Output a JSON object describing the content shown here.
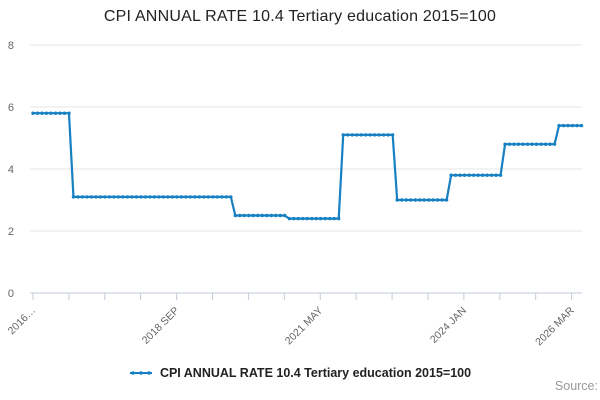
{
  "title": "CPI ANNUAL RATE 10.4 Tertiary education 2015=100",
  "legend": {
    "label": "CPI ANNUAL RATE 10.4 Tertiary education 2015=100"
  },
  "source_label": "Source:",
  "colors": {
    "line": "#1680c2",
    "grid": "#e6e6e6",
    "axis": "#c0cbdc",
    "tick_label": "#666666",
    "title_text": "#222222",
    "source_text": "#999999"
  },
  "chart_data": {
    "type": "line",
    "title": "CPI ANNUAL RATE 10.4 Tertiary education 2015=100",
    "frequency": "monthly",
    "x_start": "2016 JAN",
    "x_end": "2026 MAR",
    "n_points": 123,
    "ylim": [
      0,
      8
    ],
    "yticks": [
      0,
      2,
      4,
      6,
      8
    ],
    "grid": "horizontal-only",
    "legend_position": "bottom-center",
    "marker_style": "line-with-dots",
    "segments": [
      {
        "value": 5.8,
        "from": "2016 JAN",
        "to": "2016 SEP",
        "months": 9
      },
      {
        "value": 3.1,
        "from": "2016 OCT",
        "to": "2019 SEP",
        "months": 36
      },
      {
        "value": 2.5,
        "from": "2019 OCT",
        "to": "2020 SEP",
        "months": 12
      },
      {
        "value": 2.4,
        "from": "2020 OCT",
        "to": "2021 SEP",
        "months": 12
      },
      {
        "value": 5.1,
        "from": "2021 OCT",
        "to": "2022 SEP",
        "months": 12
      },
      {
        "value": 3.0,
        "from": "2022 OCT",
        "to": "2023 SEP",
        "months": 12
      },
      {
        "value": 3.8,
        "from": "2023 OCT",
        "to": "2024 SEP",
        "months": 12
      },
      {
        "value": 4.8,
        "from": "2024 OCT",
        "to": "2025 SEP",
        "months": 12
      },
      {
        "value": 5.4,
        "from": "2025 OCT",
        "to": "2026 MAR",
        "months": 6
      }
    ],
    "x_axis": {
      "tick_count": 16,
      "labeled_ticks": [
        {
          "i": 0,
          "label": "2016…"
        },
        {
          "i": 4,
          "label": "2018 SEP"
        },
        {
          "i": 8,
          "label": "2021 MAY"
        },
        {
          "i": 12,
          "label": "2024 JAN"
        },
        {
          "i": 15,
          "label": "2026 MAR"
        }
      ]
    }
  }
}
